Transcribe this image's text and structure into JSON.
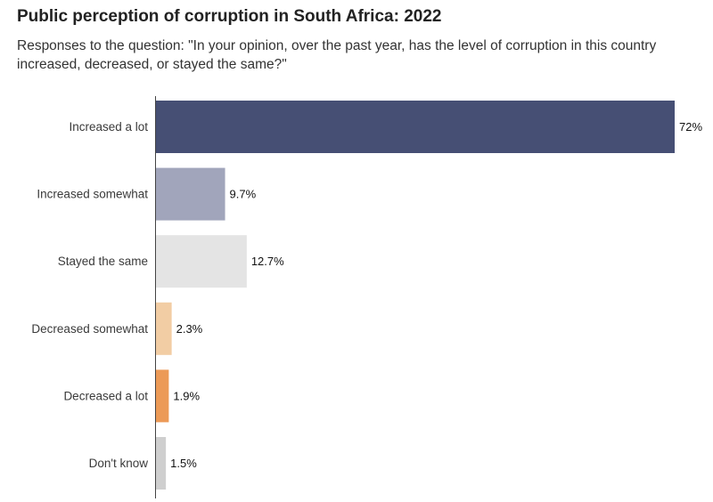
{
  "title": "Public perception of corruption in South Africa: 2022",
  "subtitle": "Responses to the question: \"In your opinion, over the past year, has the level of corruption in this country increased, decreased, or stayed the same?\"",
  "chart_data": {
    "type": "bar",
    "orientation": "horizontal",
    "categories": [
      "Increased a lot",
      "Increased somewhat",
      "Stayed the same",
      "Decreased somewhat",
      "Decreased a lot",
      "Don't know"
    ],
    "values": [
      72,
      9.7,
      12.7,
      2.3,
      1.9,
      1.5
    ],
    "value_labels": [
      "72%",
      "9.7%",
      "12.7%",
      "2.3%",
      "1.9%",
      "1.5%"
    ],
    "colors": [
      "#464f74",
      "#a1a5bb",
      "#e4e4e4",
      "#f2cda4",
      "#ec9a57",
      "#cfcfcf"
    ],
    "xlim": [
      0,
      72
    ],
    "grid": false,
    "legend": "none"
  }
}
